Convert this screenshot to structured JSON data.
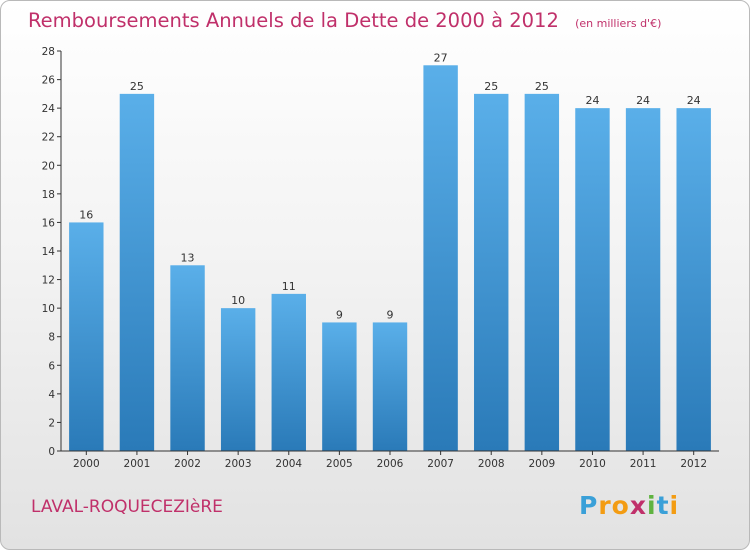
{
  "header": {
    "title": "Remboursements Annuels de la Dette de 2000 à 2012",
    "subtitle": "(en milliers d'€)"
  },
  "footer": {
    "commune": "LAVAL-ROQUECEZIèRE",
    "logo_letters": [
      "P",
      "r",
      "o",
      "x",
      "i",
      "t",
      "i"
    ],
    "logo_colors": [
      "#3aa0d8",
      "#f39c12",
      "#f39c12",
      "#c0306a",
      "#5fb340",
      "#3aa0d8",
      "#f39c12"
    ]
  },
  "chart_data": {
    "type": "bar",
    "categories": [
      "2000",
      "2001",
      "2002",
      "2003",
      "2004",
      "2005",
      "2006",
      "2007",
      "2008",
      "2009",
      "2010",
      "2011",
      "2012"
    ],
    "values": [
      16,
      25,
      13,
      10,
      11,
      9,
      9,
      27,
      25,
      25,
      24,
      24,
      24
    ],
    "data_labels": [
      "16",
      "25",
      "13",
      "10",
      "11",
      "9",
      "9",
      "27",
      "25",
      "25",
      "24",
      "24",
      "24"
    ],
    "title": "Remboursements Annuels de la Dette de 2000 à 2012",
    "xlabel": "",
    "ylabel": "",
    "ylim": [
      0,
      28
    ],
    "yticks": [
      0,
      2,
      4,
      6,
      8,
      10,
      12,
      14,
      16,
      18,
      20,
      22,
      24,
      26,
      28
    ],
    "grid": false,
    "colors": {
      "bar_top": "#5aafe9",
      "bar_bottom": "#2a7ab8",
      "axis": "#333333"
    }
  }
}
